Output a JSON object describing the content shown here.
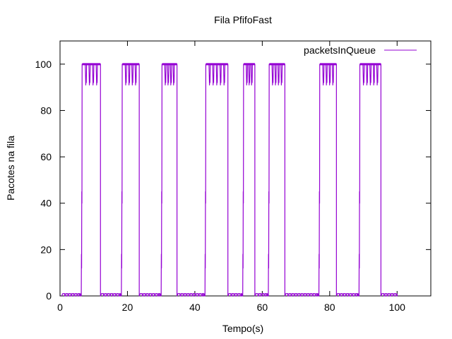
{
  "chart_data": {
    "type": "line",
    "title": "Fila PfifoFast",
    "xlabel": "Tempo(s)",
    "ylabel": "Pacotes na fila",
    "xlim": [
      0,
      110
    ],
    "ylim": [
      0,
      110
    ],
    "x_ticks": [
      0,
      20,
      40,
      60,
      80,
      100
    ],
    "y_ticks": [
      0,
      20,
      40,
      60,
      80,
      100
    ],
    "x_tick_labels": [
      "0",
      "20",
      "40",
      "60",
      "80",
      "100"
    ],
    "y_tick_labels": [
      "0",
      "20",
      "40",
      "60",
      "80",
      "100"
    ],
    "grid": false,
    "legend_position": "top-right",
    "series": [
      {
        "name": "packetsInQueue",
        "color": "#9400d3",
        "high_intervals": [
          [
            6.3,
            12.0
          ],
          [
            18.2,
            23.5
          ],
          [
            30.0,
            34.7
          ],
          [
            43.0,
            49.8
          ],
          [
            54.2,
            57.8
          ],
          [
            61.8,
            66.7
          ],
          [
            76.8,
            82.0
          ],
          [
            88.7,
            95.2
          ]
        ],
        "high_level": 100,
        "dip_level": 91,
        "low_level": 1
      }
    ]
  }
}
